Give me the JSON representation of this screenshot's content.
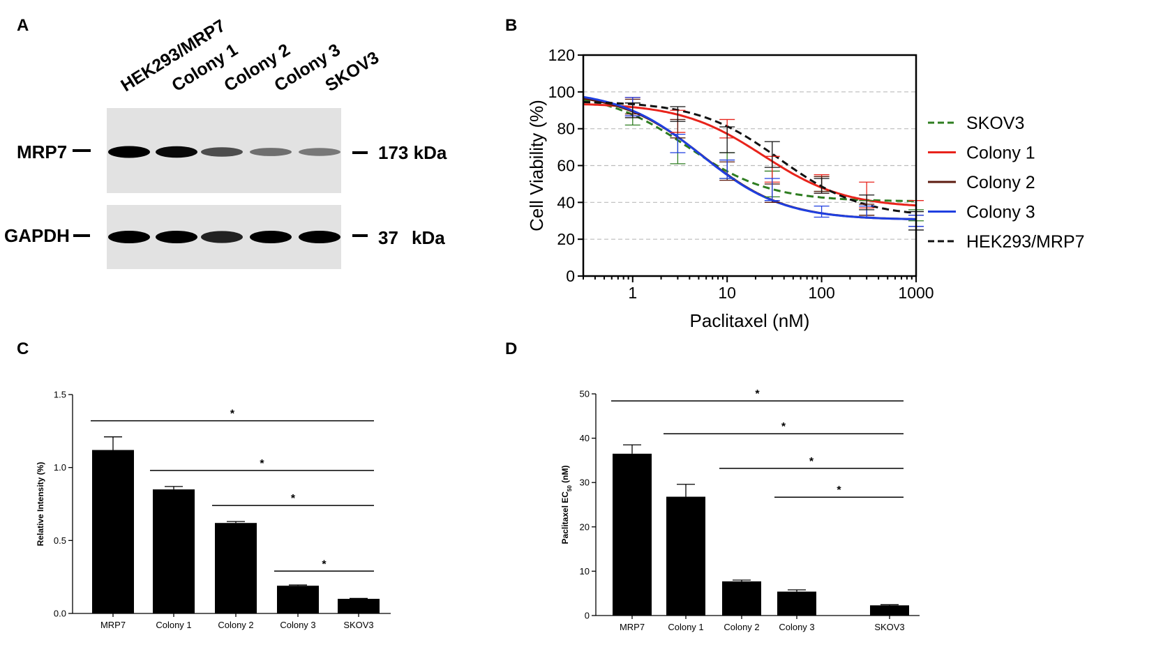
{
  "panels": {
    "a": {
      "letter": "A",
      "lanes": [
        "HEK293/MRP7",
        "Colony 1",
        "Colony 2",
        "Colony 3",
        "SKOV3"
      ],
      "rows": [
        {
          "protein": "MRP7",
          "size": "173 kDa",
          "intensity": [
            1.0,
            0.95,
            0.55,
            0.35,
            0.3
          ]
        },
        {
          "protein": "GAPDH",
          "size_num": "37",
          "size_unit": "kDa",
          "intensity": [
            1.0,
            1.0,
            0.8,
            1.0,
            1.0
          ]
        }
      ]
    },
    "b": {
      "letter": "B"
    },
    "c": {
      "letter": "C"
    },
    "d": {
      "letter": "D"
    }
  },
  "chart_data": [
    {
      "panel": "B",
      "type": "line",
      "xscale": "log",
      "xlabel": "Paclitaxel (nM)",
      "ylabel": "Cell Viability (%)",
      "xticks": [
        "1",
        "10",
        "100",
        "1000"
      ],
      "yticks": [
        "0",
        "20",
        "40",
        "60",
        "80",
        "100",
        "120"
      ],
      "xlim": [
        0.3,
        1000
      ],
      "ylim": [
        0,
        120
      ],
      "gridlines": [
        20,
        40,
        60,
        80,
        100
      ],
      "x_points": [
        1,
        3,
        10,
        30,
        100,
        300,
        1000
      ],
      "series": [
        {
          "name": "SKOV3",
          "color": "#2e7d20",
          "dash": "10,6",
          "top": 100,
          "bottom": 40.5,
          "ec50": 3.8,
          "points": [
            [
              1,
              88,
              6
            ],
            [
              3,
              68,
              7
            ],
            [
              10,
              60,
              7
            ],
            [
              30,
              50,
              7
            ],
            [
              100,
              50,
              4
            ],
            [
              300,
              37,
              4
            ],
            [
              1000,
              33,
              3
            ]
          ]
        },
        {
          "name": "Colony 1",
          "color": "#e8231b",
          "dash": "",
          "top": 94,
          "bottom": 37,
          "ec50": 24,
          "points": [
            [
              1,
              92,
              5
            ],
            [
              3,
              84,
              6
            ],
            [
              10,
              80,
              5
            ],
            [
              30,
              58,
              7
            ],
            [
              100,
              50,
              5
            ],
            [
              300,
              44,
              7
            ],
            [
              1000,
              37,
              4
            ]
          ]
        },
        {
          "name": "Colony 2",
          "color": "#5c1b10",
          "dash": "",
          "top": 100,
          "bottom": 30.5,
          "ec50": 5.5,
          "points": [
            [
              1,
              92,
              4
            ],
            [
              3,
              80,
              5
            ],
            [
              10,
              57,
              5
            ],
            [
              30,
              45,
              5
            ],
            [
              100,
              50,
              4
            ],
            [
              300,
              36,
              3
            ],
            [
              1000,
              30,
              3
            ]
          ]
        },
        {
          "name": "Colony 3",
          "color": "#1f3fe0",
          "dash": "",
          "top": 101,
          "bottom": 30.5,
          "ec50": 5.3,
          "points": [
            [
              1,
              92,
              5
            ],
            [
              3,
              72,
              5
            ],
            [
              10,
              58,
              5
            ],
            [
              30,
              47,
              6
            ],
            [
              100,
              35,
              3
            ],
            [
              300,
              35,
              3
            ],
            [
              1000,
              30,
              3
            ]
          ]
        },
        {
          "name": "HEK293/MRP7",
          "color": "#111111",
          "dash": "10,6",
          "top": 95,
          "bottom": 32,
          "ec50": 36,
          "points": [
            [
              1,
              90,
              4
            ],
            [
              3,
              88,
              4
            ],
            [
              10,
              74,
              7
            ],
            [
              30,
              66,
              7
            ],
            [
              100,
              49,
              4
            ],
            [
              300,
              40,
              4
            ],
            [
              1000,
              30,
              5
            ]
          ]
        }
      ]
    },
    {
      "panel": "C",
      "type": "bar",
      "ylabel": "Relative Intensity (%)",
      "categories": [
        "MRP7",
        "Colony 1",
        "Colony 2",
        "Colony 3",
        "SKOV3"
      ],
      "values": [
        1.12,
        0.85,
        0.62,
        0.19,
        0.1
      ],
      "errors": [
        0.09,
        0.02,
        0.01,
        0.005,
        0.003
      ],
      "ylim": [
        0,
        1.5
      ],
      "yticks": [
        "0.0",
        "0.5",
        "1.0",
        "1.5"
      ],
      "significance": [
        {
          "from": 0,
          "to": 4,
          "label": "*",
          "level": 1.32
        },
        {
          "from": 1,
          "to": 4,
          "label": "*",
          "level": 0.98
        },
        {
          "from": 2,
          "to": 4,
          "label": "*",
          "level": 0.74
        },
        {
          "from": 3,
          "to": 4,
          "label": "*",
          "level": 0.29
        }
      ]
    },
    {
      "panel": "D",
      "type": "bar",
      "ylabel_main": "Paclitaxel EC",
      "ylabel_sub": "50",
      "ylabel_unit": " (nM)",
      "categories": [
        "MRP7",
        "Colony 1",
        "Colony 2",
        "Colony 3",
        "SKOV3"
      ],
      "values": [
        36.5,
        26.8,
        7.7,
        5.4,
        2.3
      ],
      "errors": [
        2.0,
        2.8,
        0.3,
        0.4,
        0.15
      ],
      "ylim": [
        0,
        50
      ],
      "yticks": [
        "0",
        "10",
        "20",
        "30",
        "40",
        "50"
      ],
      "significance": [
        {
          "from": 0,
          "to": 4,
          "label": "*",
          "level": 48.4
        },
        {
          "from": 1,
          "to": 4,
          "label": "*",
          "level": 41.0
        },
        {
          "from": 2,
          "to": 4,
          "label": "*",
          "level": 33.2
        },
        {
          "from": 3,
          "to": 4,
          "label": "*",
          "level": 26.7
        }
      ]
    }
  ]
}
